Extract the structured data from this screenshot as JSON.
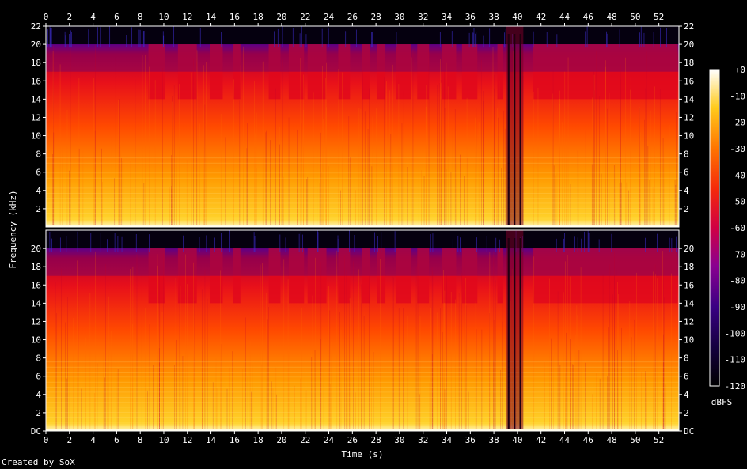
{
  "chart_data": {
    "type": "heatmap",
    "subtype": "spectrogram",
    "channels": 2,
    "title": "",
    "xlabel": "Time (s)",
    "ylabel": "Frequency (kHz)",
    "xlim": [
      0,
      53.7
    ],
    "ylim_khz": [
      0,
      22
    ],
    "x_ticks": [
      "0",
      "2",
      "4",
      "6",
      "8",
      "10",
      "12",
      "14",
      "16",
      "18",
      "20",
      "22",
      "24",
      "26",
      "28",
      "30",
      "32",
      "34",
      "36",
      "38",
      "40",
      "42",
      "44",
      "46",
      "48",
      "50",
      "52"
    ],
    "y_ticks_top": [
      "2",
      "4",
      "6",
      "8",
      "10",
      "12",
      "14",
      "16",
      "18",
      "20",
      "22"
    ],
    "y_ticks_bottom": [
      "DC",
      "2",
      "4",
      "6",
      "8",
      "10",
      "12",
      "14",
      "16",
      "18",
      "20"
    ],
    "colorbar": {
      "label": "dBFS",
      "range": [
        -120,
        0
      ],
      "ticks": [
        "+0",
        "-10",
        "-20",
        "-30",
        "-40",
        "-50",
        "-60",
        "-70",
        "-80",
        "-90",
        "-100",
        "-110",
        "-120"
      ]
    },
    "features": {
      "lowpass_cutoff_khz": 20,
      "near_silence_gap_s": [
        39.0,
        40.5
      ],
      "high_frequency_bursts_s": [
        [
          8.7,
          10.1
        ],
        [
          11.2,
          12.8
        ],
        [
          13.9,
          15.0
        ],
        [
          15.9,
          16.5
        ],
        [
          18.9,
          19.9
        ],
        [
          20.6,
          21.9
        ],
        [
          22.2,
          23.8
        ],
        [
          24.8,
          25.8
        ],
        [
          26.8,
          27.5
        ],
        [
          28.1,
          28.8
        ],
        [
          29.7,
          31.0
        ],
        [
          31.5,
          32.5
        ],
        [
          33.6,
          34.8
        ],
        [
          35.3,
          36.6
        ],
        [
          38.3,
          38.8
        ],
        [
          41.3,
          53.6
        ]
      ]
    }
  },
  "footer": {
    "credit": "Created by SoX"
  }
}
